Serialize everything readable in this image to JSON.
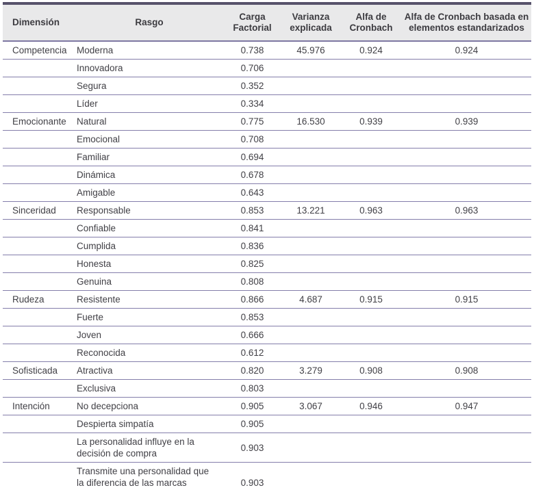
{
  "table": {
    "columns": [
      "Dimensión",
      "Rasgo",
      "Carga Factorial",
      "Varianza explicada",
      "Alfa de Cronbach",
      "Alfa de Cronbach basada en elementos estandarizados"
    ],
    "rows": [
      {
        "dimension": "Competencia",
        "rasgo": "Moderna",
        "carga": "0.738",
        "varianza": "45.976",
        "alfa": "0.924",
        "alfa_std": "0.924"
      },
      {
        "dimension": "",
        "rasgo": "Innovadora",
        "carga": "0.706",
        "varianza": "",
        "alfa": "",
        "alfa_std": ""
      },
      {
        "dimension": "",
        "rasgo": "Segura",
        "carga": "0.352",
        "varianza": "",
        "alfa": "",
        "alfa_std": ""
      },
      {
        "dimension": "",
        "rasgo": "Líder",
        "carga": "0.334",
        "varianza": "",
        "alfa": "",
        "alfa_std": ""
      },
      {
        "dimension": "Emocionante",
        "rasgo": "Natural",
        "carga": "0.775",
        "varianza": "16.530",
        "alfa": "0.939",
        "alfa_std": "0.939"
      },
      {
        "dimension": "",
        "rasgo": "Emocional",
        "carga": "0.708",
        "varianza": "",
        "alfa": "",
        "alfa_std": ""
      },
      {
        "dimension": "",
        "rasgo": "Familiar",
        "carga": "0.694",
        "varianza": "",
        "alfa": "",
        "alfa_std": ""
      },
      {
        "dimension": "",
        "rasgo": "Dinámica",
        "carga": "0.678",
        "varianza": "",
        "alfa": "",
        "alfa_std": ""
      },
      {
        "dimension": "",
        "rasgo": "Amigable",
        "carga": "0.643",
        "varianza": "",
        "alfa": "",
        "alfa_std": ""
      },
      {
        "dimension": "Sinceridad",
        "rasgo": "Responsable",
        "carga": "0.853",
        "varianza": "13.221",
        "alfa": "0.963",
        "alfa_std": "0.963"
      },
      {
        "dimension": "",
        "rasgo": "Confiable",
        "carga": "0.841",
        "varianza": "",
        "alfa": "",
        "alfa_std": ""
      },
      {
        "dimension": "",
        "rasgo": "Cumplida",
        "carga": "0.836",
        "varianza": "",
        "alfa": "",
        "alfa_std": ""
      },
      {
        "dimension": "",
        "rasgo": "Honesta",
        "carga": "0.825",
        "varianza": "",
        "alfa": "",
        "alfa_std": ""
      },
      {
        "dimension": "",
        "rasgo": "Genuina",
        "carga": "0.808",
        "varianza": "",
        "alfa": "",
        "alfa_std": ""
      },
      {
        "dimension": "Rudeza",
        "rasgo": "Resistente",
        "carga": "0.866",
        "varianza": "4.687",
        "alfa": "0.915",
        "alfa_std": "0.915"
      },
      {
        "dimension": "",
        "rasgo": "Fuerte",
        "carga": "0.853",
        "varianza": "",
        "alfa": "",
        "alfa_std": ""
      },
      {
        "dimension": "",
        "rasgo": "Joven",
        "carga": "0.666",
        "varianza": "",
        "alfa": "",
        "alfa_std": ""
      },
      {
        "dimension": "",
        "rasgo": "Reconocida",
        "carga": "0.612",
        "varianza": "",
        "alfa": "",
        "alfa_std": ""
      },
      {
        "dimension": "Sofisticada",
        "rasgo": "Atractiva",
        "carga": "0.820",
        "varianza": "3.279",
        "alfa": "0.908",
        "alfa_std": "0.908"
      },
      {
        "dimension": "",
        "rasgo": "Exclusiva",
        "carga": "0.803",
        "varianza": "",
        "alfa": "",
        "alfa_std": ""
      },
      {
        "dimension": "Intención",
        "rasgo": "No decepciona",
        "carga": "0.905",
        "varianza": "3.067",
        "alfa": "0.946",
        "alfa_std": "0.947"
      },
      {
        "dimension": "",
        "rasgo": "Despierta simpatía",
        "carga": "0.905",
        "varianza": "",
        "alfa": "",
        "alfa_std": ""
      },
      {
        "dimension": "",
        "rasgo": "La personalidad influye en la decisión de compra",
        "carga": "0.903",
        "varianza": "",
        "alfa": "",
        "alfa_std": ""
      },
      {
        "dimension": "",
        "rasgo": "Transmite una personalidad que la diferencia de las marcas competidoras",
        "carga": "0.903",
        "varianza": "",
        "alfa": "",
        "alfa_std": ""
      }
    ]
  },
  "colors": {
    "thick_rule": "#57526b",
    "thin_rule": "#837daa",
    "header_bg": "#e9e9ea",
    "text": "#414046"
  }
}
